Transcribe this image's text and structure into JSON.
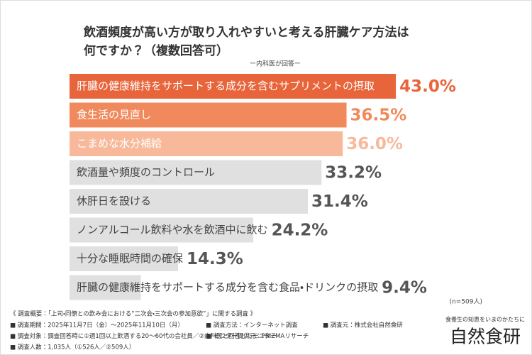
{
  "chart_data": {
    "type": "bar",
    "title": [
      "飲酒頻度が高い方が取り入れやすいと考える肝臓ケア方法は",
      "何ですか？（複数回答可）"
    ],
    "subtitle": "ー内科医が回答ー",
    "categories": [
      "肝臓の健康維持をサポートする成分を含むサプリメントの摂取",
      "食生活の見直し",
      "こまめな水分補給",
      "飲酒量や頻度のコントロール",
      "休肝日を設ける",
      "ノンアルコール飲料や水を飲酒中に飲む",
      "十分な睡眠時間の確保",
      "肝臓の健康維持をサポートする成分を含む食品・ドリンクの摂取"
    ],
    "values": [
      43.0,
      36.5,
      36.0,
      33.2,
      31.4,
      24.2,
      14.3,
      9.4
    ],
    "value_labels": [
      "43.0%",
      "36.5%",
      "36.0%",
      "33.2%",
      "31.4%",
      "24.2%",
      "14.3%",
      "9.4%"
    ],
    "colors": [
      "#e8643a",
      "#f08a5d",
      "#f8b89a",
      "#e0e0e0",
      "#e0e0e0",
      "#e0e0e0",
      "#e0e0e0",
      "#e0e0e0"
    ],
    "value_label_colors": [
      "#e8643a",
      "#f08a5d",
      "#f8b89a",
      "#555555",
      "#555555",
      "#555555",
      "#555555",
      "#555555"
    ],
    "category_label_colors": [
      "#ffffff",
      "#ffffff",
      "#ffffff",
      "#444444",
      "#444444",
      "#444444",
      "#444444",
      "#444444"
    ],
    "note": "(n=509人)"
  },
  "footer": {
    "heading": "《 調査概要：「上司・同僚との飲み会における“二次会・三次会の参加意欲”」に関する調査 》",
    "rows": [
      [
        "■ 調査期間：2025年11月7日（金）～2025年11月10日（月）",
        "■ 調査方法：インターネット調査",
        "■ 調査元：株式会社自然食研"
      ],
      [
        "■ 調査対象：調査回答時に①週1回以上飲酒する20～60代の会社員／②内科医と回答したモニター",
        "■ モニター提供元：PRIZMAリサーチ"
      ],
      [
        "■ 調査人数：1,035人（①526人／②509人）"
      ]
    ]
  },
  "logo": {
    "tagline": "食養生の知恵をいまのかたちに",
    "name": "自然食研"
  }
}
